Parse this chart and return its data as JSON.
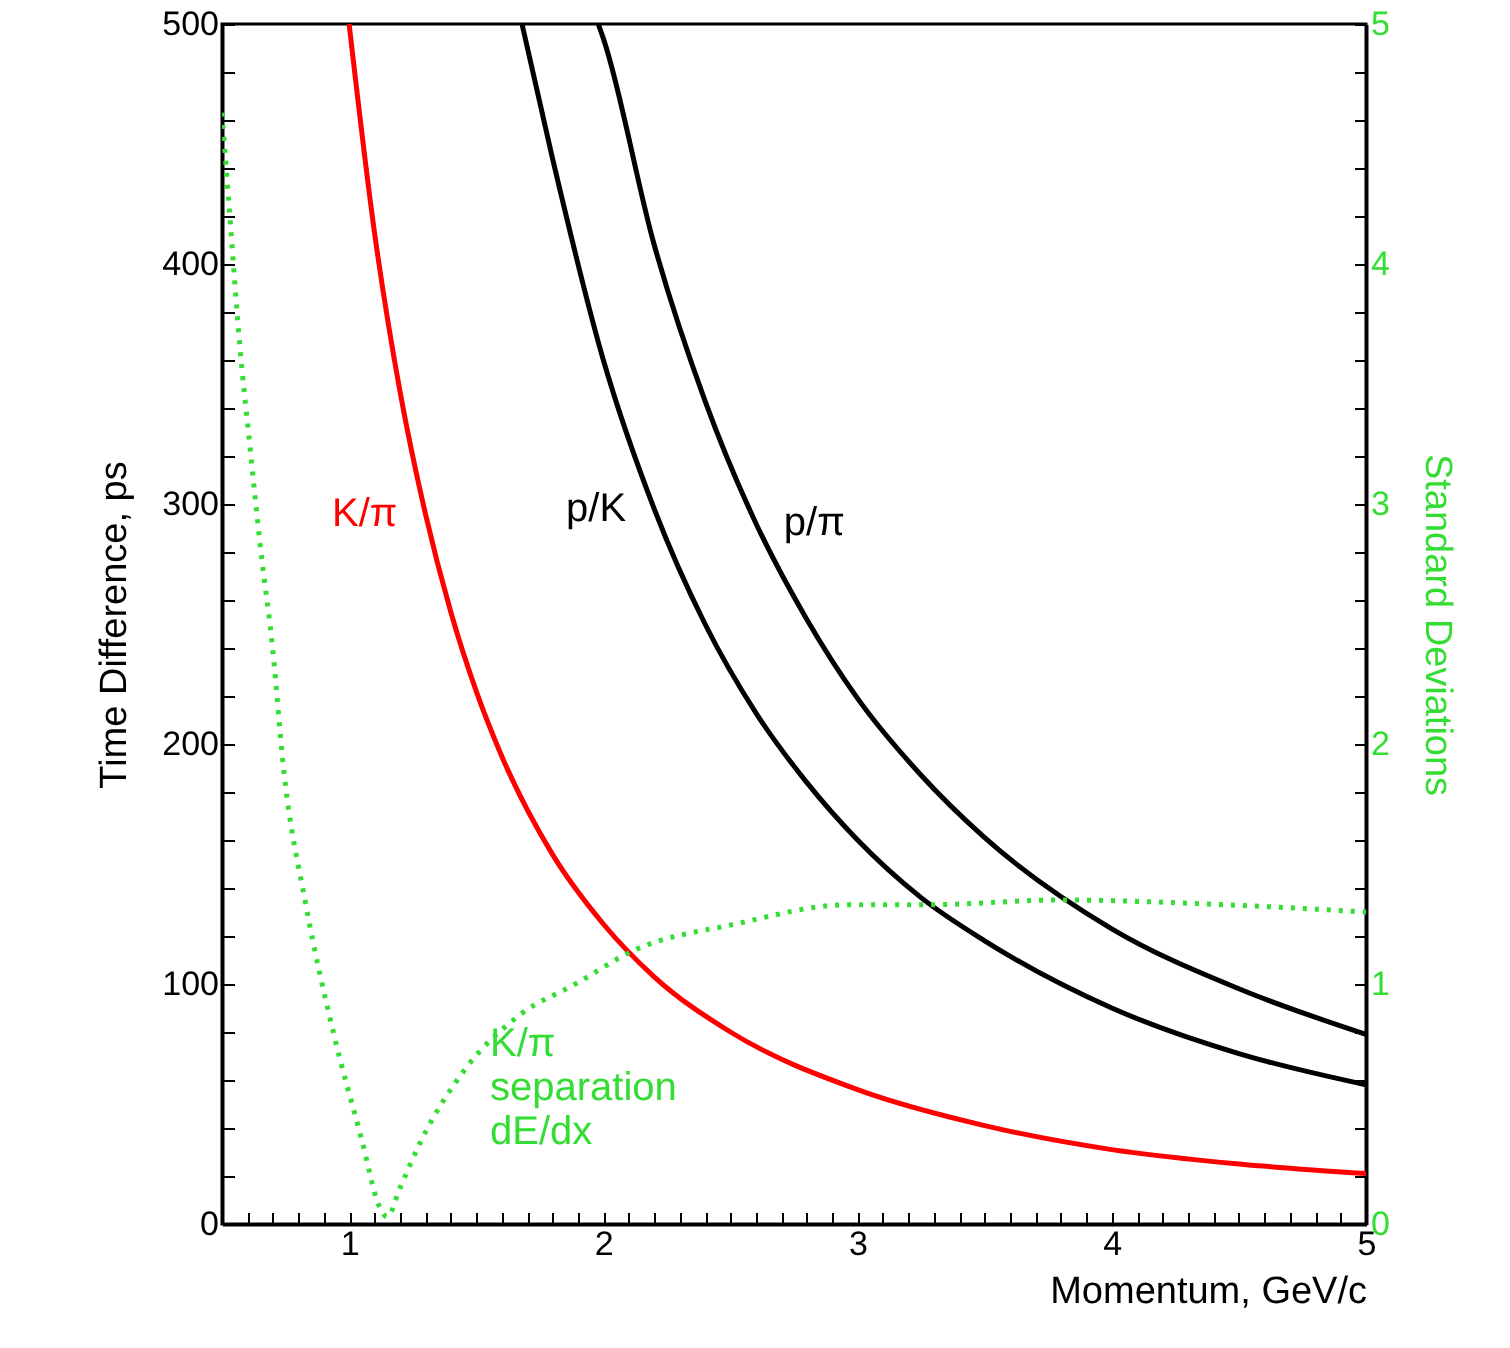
{
  "chart_data": {
    "type": "line",
    "xlabel": "Momentum, GeV/c",
    "ylabel": "Time Difference, ps",
    "y2label": "Standard Deviations",
    "xlim": [
      0.5,
      5
    ],
    "ylim": [
      0,
      500
    ],
    "y2lim": [
      0,
      5
    ],
    "xticks": [
      {
        "value": 0.5,
        "label": null
      },
      {
        "value": 0.6,
        "label": null
      },
      {
        "value": 0.7,
        "label": null
      },
      {
        "value": 0.8,
        "label": null
      },
      {
        "value": 0.9,
        "label": null
      },
      1,
      {
        "value": 1.1,
        "label": null
      },
      {
        "value": 1.2,
        "label": null
      },
      {
        "value": 1.3,
        "label": null
      },
      {
        "value": 1.4,
        "label": null
      },
      {
        "value": 1.5,
        "label": null
      },
      {
        "value": 1.6,
        "label": null
      },
      {
        "value": 1.7,
        "label": null
      },
      {
        "value": 1.8,
        "label": null
      },
      {
        "value": 1.9,
        "label": null
      },
      2,
      {
        "value": 2.1,
        "label": null
      },
      {
        "value": 2.2,
        "label": null
      },
      {
        "value": 2.3,
        "label": null
      },
      {
        "value": 2.4,
        "label": null
      },
      {
        "value": 2.5,
        "label": null
      },
      {
        "value": 2.6,
        "label": null
      },
      {
        "value": 2.7,
        "label": null
      },
      {
        "value": 2.8,
        "label": null
      },
      {
        "value": 2.9,
        "label": null
      },
      3,
      {
        "value": 3.1,
        "label": null
      },
      {
        "value": 3.2,
        "label": null
      },
      {
        "value": 3.3,
        "label": null
      },
      {
        "value": 3.4,
        "label": null
      },
      {
        "value": 3.5,
        "label": null
      },
      {
        "value": 3.6,
        "label": null
      },
      {
        "value": 3.7,
        "label": null
      },
      {
        "value": 3.8,
        "label": null
      },
      {
        "value": 3.9,
        "label": null
      },
      4,
      {
        "value": 4.1,
        "label": null
      },
      {
        "value": 4.2,
        "label": null
      },
      {
        "value": 4.3,
        "label": null
      },
      {
        "value": 4.4,
        "label": null
      },
      {
        "value": 4.5,
        "label": null
      },
      {
        "value": 4.6,
        "label": null
      },
      {
        "value": 4.7,
        "label": null
      },
      {
        "value": 4.8,
        "label": null
      },
      {
        "value": 4.9,
        "label": null
      },
      5
    ],
    "yticks": [
      0,
      {
        "value": 20,
        "label": null
      },
      {
        "value": 40,
        "label": null
      },
      {
        "value": 60,
        "label": null
      },
      {
        "value": 80,
        "label": null
      },
      100,
      {
        "value": 120,
        "label": null
      },
      {
        "value": 140,
        "label": null
      },
      {
        "value": 160,
        "label": null
      },
      {
        "value": 180,
        "label": null
      },
      200,
      {
        "value": 220,
        "label": null
      },
      {
        "value": 240,
        "label": null
      },
      {
        "value": 260,
        "label": null
      },
      {
        "value": 280,
        "label": null
      },
      300,
      {
        "value": 320,
        "label": null
      },
      {
        "value": 340,
        "label": null
      },
      {
        "value": 360,
        "label": null
      },
      {
        "value": 380,
        "label": null
      },
      400,
      {
        "value": 420,
        "label": null
      },
      {
        "value": 440,
        "label": null
      },
      {
        "value": 460,
        "label": null
      },
      {
        "value": 480,
        "label": null
      },
      500
    ],
    "y2ticks": [
      0,
      {
        "value": 0.2,
        "label": null
      },
      {
        "value": 0.4,
        "label": null
      },
      {
        "value": 0.6,
        "label": null
      },
      {
        "value": 0.8,
        "label": null
      },
      1,
      {
        "value": 1.2,
        "label": null
      },
      {
        "value": 1.4,
        "label": null
      },
      {
        "value": 1.6,
        "label": null
      },
      {
        "value": 1.8,
        "label": null
      },
      2,
      {
        "value": 2.2,
        "label": null
      },
      {
        "value": 2.4,
        "label": null
      },
      {
        "value": 2.6,
        "label": null
      },
      {
        "value": 2.8,
        "label": null
      },
      3,
      {
        "value": 3.2,
        "label": null
      },
      {
        "value": 3.4,
        "label": null
      },
      {
        "value": 3.6,
        "label": null
      },
      {
        "value": 3.8,
        "label": null
      },
      4,
      {
        "value": 4.2,
        "label": null
      },
      {
        "value": 4.4,
        "label": null
      },
      {
        "value": 4.6,
        "label": null
      },
      {
        "value": 4.8,
        "label": null
      },
      5
    ],
    "grid": false,
    "marker": "none",
    "line_style": "solid",
    "series": [
      {
        "name": "K/π",
        "color": "#ff0000",
        "x": [
          1.0,
          1.1,
          1.2,
          1.3,
          1.4,
          1.5,
          1.6,
          1.8,
          2.0,
          2.2,
          2.5,
          3.0,
          3.5,
          4.0,
          4.5,
          5.0
        ],
        "values": [
          500,
          413,
          347,
          296,
          255,
          222,
          195,
          154,
          125,
          103,
          80,
          56,
          41,
          31,
          25,
          21
        ]
      },
      {
        "name": "p/K",
        "color": "#000000",
        "x": [
          1.68,
          1.8,
          2.0,
          2.2,
          2.4,
          2.6,
          2.8,
          3.0,
          3.25,
          3.5,
          4.0,
          4.5,
          5.0
        ],
        "values": [
          500,
          444,
          360,
          298,
          250,
          213,
          184,
          160,
          136,
          118,
          90,
          71,
          58
        ]
      },
      {
        "name": "p/π",
        "color": "#000000",
        "x": [
          1.98,
          2.0,
          2.2,
          2.4,
          2.6,
          2.8,
          3.0,
          3.25,
          3.5,
          4.0,
          4.5,
          5.0
        ],
        "values": [
          500,
          494,
          408,
          343,
          292,
          252,
          219,
          187,
          161,
          123,
          98,
          79
        ]
      },
      {
        "name": "K/π separation dE/dx",
        "color": "#33dd33",
        "axis": "y2",
        "line_style": "dotted",
        "x": [
          0.5,
          0.53,
          0.57,
          0.61,
          0.65,
          0.7,
          0.74,
          0.83,
          0.94,
          1.05,
          1.12,
          1.15,
          1.2,
          1.28,
          1.46,
          1.67,
          1.89,
          2.12,
          2.52,
          2.96,
          3.27,
          3.8,
          4.45,
          5.0
        ],
        "values": [
          4.63,
          4.21,
          3.66,
          3.24,
          2.83,
          2.39,
          1.92,
          1.33,
          0.79,
          0.35,
          0.07,
          0.03,
          0.15,
          0.34,
          0.65,
          0.87,
          1.0,
          1.14,
          1.25,
          1.33,
          1.33,
          1.35,
          1.33,
          1.3
        ]
      }
    ]
  }
}
